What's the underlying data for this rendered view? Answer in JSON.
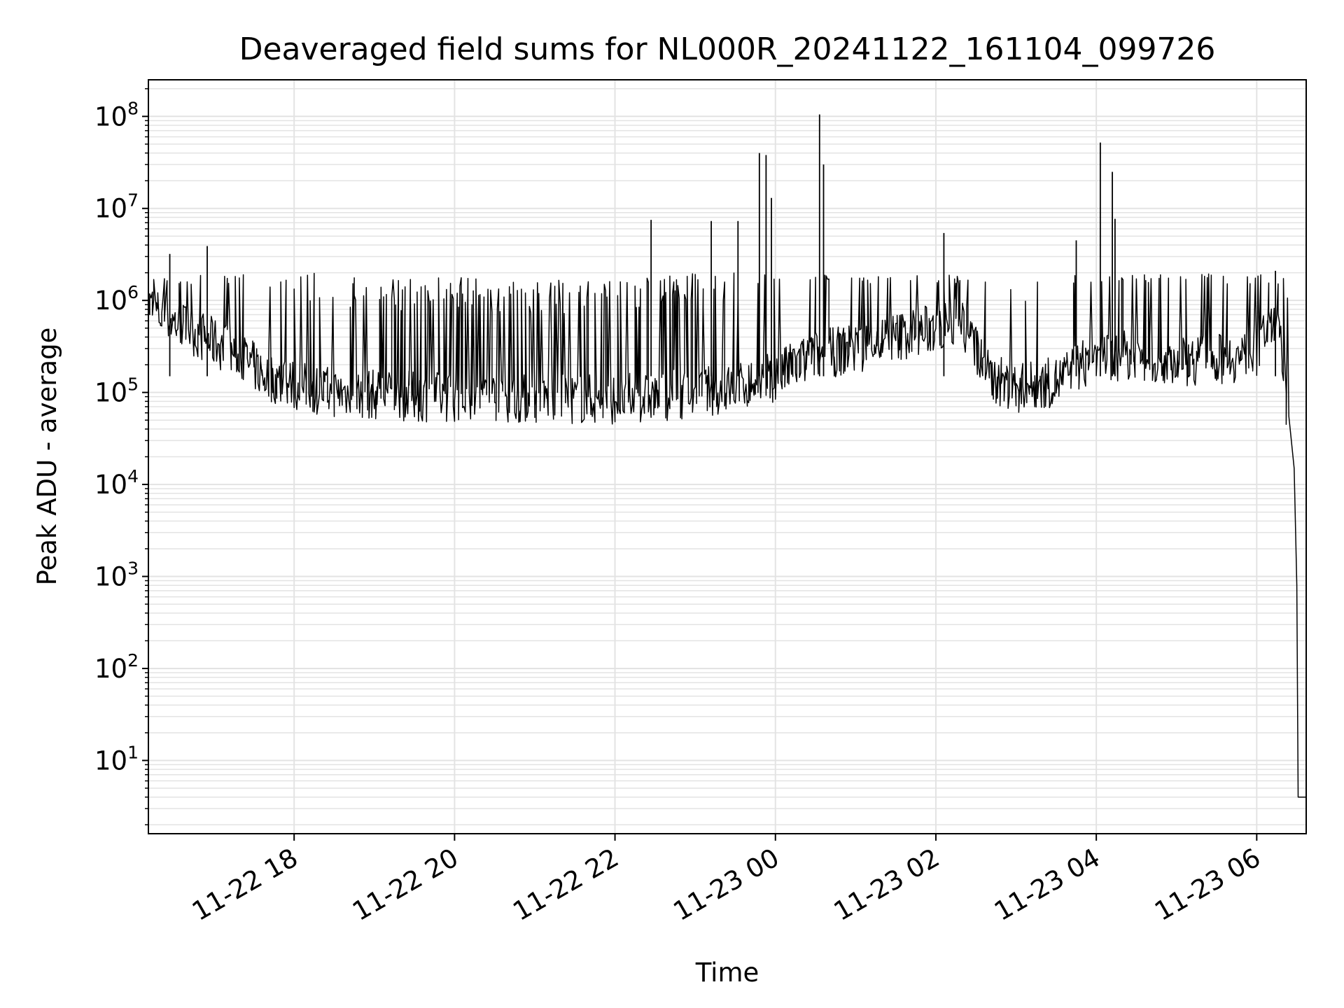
{
  "chart_data": {
    "type": "line",
    "title": "Deaveraged field sums for NL000R_20241122_161104_099726",
    "xlabel": "Time",
    "ylabel": "Peak ADU - average",
    "yscale": "log",
    "ylim": [
      1.6,
      250000000
    ],
    "xlim": [
      "2024-11-22 16:11",
      "2024-11-23 06:37"
    ],
    "x_tick_labels": [
      "11-22 18",
      "11-22 20",
      "11-22 22",
      "11-23 00",
      "11-23 02",
      "11-23 04",
      "11-23 06"
    ],
    "x_ticks": [
      "2024-11-22 18:00",
      "2024-11-22 20:00",
      "2024-11-22 22:00",
      "2024-11-23 00:00",
      "2024-11-23 02:00",
      "2024-11-23 04:00",
      "2024-11-23 06:00"
    ],
    "y_tick_labels": [
      {
        "base": "10",
        "exp": "1"
      },
      {
        "base": "10",
        "exp": "2"
      },
      {
        "base": "10",
        "exp": "3"
      },
      {
        "base": "10",
        "exp": "4"
      },
      {
        "base": "10",
        "exp": "5"
      },
      {
        "base": "10",
        "exp": "6"
      },
      {
        "base": "10",
        "exp": "7"
      },
      {
        "base": "10",
        "exp": "8"
      }
    ],
    "grid": true,
    "series": [
      {
        "color": "#000000",
        "x": [
          "2024-11-22 16:11",
          "2024-11-22 16:20",
          "2024-11-22 16:40",
          "2024-11-22 17:00",
          "2024-11-22 17:20",
          "2024-11-22 17:40",
          "2024-11-22 18:00",
          "2024-11-22 18:30",
          "2024-11-22 19:00",
          "2024-11-22 19:30",
          "2024-11-22 20:00",
          "2024-11-22 20:30",
          "2024-11-22 21:00",
          "2024-11-22 21:30",
          "2024-11-22 22:00",
          "2024-11-22 22:30",
          "2024-11-22 23:00",
          "2024-11-22 23:30",
          "2024-11-23 00:00",
          "2024-11-23 00:30",
          "2024-11-23 01:00",
          "2024-11-23 01:30",
          "2024-11-23 02:00",
          "2024-11-23 02:20",
          "2024-11-23 02:40",
          "2024-11-23 03:00",
          "2024-11-23 03:30",
          "2024-11-23 04:00",
          "2024-11-23 04:30",
          "2024-11-23 05:00",
          "2024-11-23 05:30",
          "2024-11-23 06:00",
          "2024-11-23 06:10",
          "2024-11-23 06:15",
          "2024-11-23 06:20",
          "2024-11-23 06:25",
          "2024-11-23 06:28",
          "2024-11-23 06:30",
          "2024-11-23 06:31",
          "2024-11-23 06:37"
        ],
        "y": [
          900000,
          700000,
          500000,
          350000,
          250000,
          150000,
          120000,
          100000,
          95000,
          90000,
          90000,
          90000,
          85000,
          85000,
          85000,
          90000,
          100000,
          110000,
          150000,
          250000,
          300000,
          400000,
          500000,
          600000,
          150000,
          110000,
          130000,
          250000,
          250000,
          220000,
          230000,
          250000,
          600000,
          700000,
          200000,
          40000,
          15000,
          800,
          4,
          4
        ]
      }
    ],
    "spikes": [
      {
        "x": "2024-11-22 16:27",
        "y": 3200000
      },
      {
        "x": "2024-11-22 16:55",
        "y": 3900000
      },
      {
        "x": "2024-11-22 22:27",
        "y": 7500000
      },
      {
        "x": "2024-11-22 23:12",
        "y": 7300000
      },
      {
        "x": "2024-11-22 23:32",
        "y": 7300000
      },
      {
        "x": "2024-11-22 23:48",
        "y": 40000000
      },
      {
        "x": "2024-11-22 23:53",
        "y": 38000000
      },
      {
        "x": "2024-11-22 23:57",
        "y": 13000000
      },
      {
        "x": "2024-11-23 00:33",
        "y": 105000000
      },
      {
        "x": "2024-11-23 00:36",
        "y": 30000000
      },
      {
        "x": "2024-11-23 02:06",
        "y": 5400000
      },
      {
        "x": "2024-11-23 03:45",
        "y": 4500000
      },
      {
        "x": "2024-11-23 04:03",
        "y": 52000000
      },
      {
        "x": "2024-11-23 04:12",
        "y": 25000000
      },
      {
        "x": "2024-11-23 04:14",
        "y": 7700000
      },
      {
        "x": "2024-11-23 06:14",
        "y": 2100000
      }
    ]
  }
}
